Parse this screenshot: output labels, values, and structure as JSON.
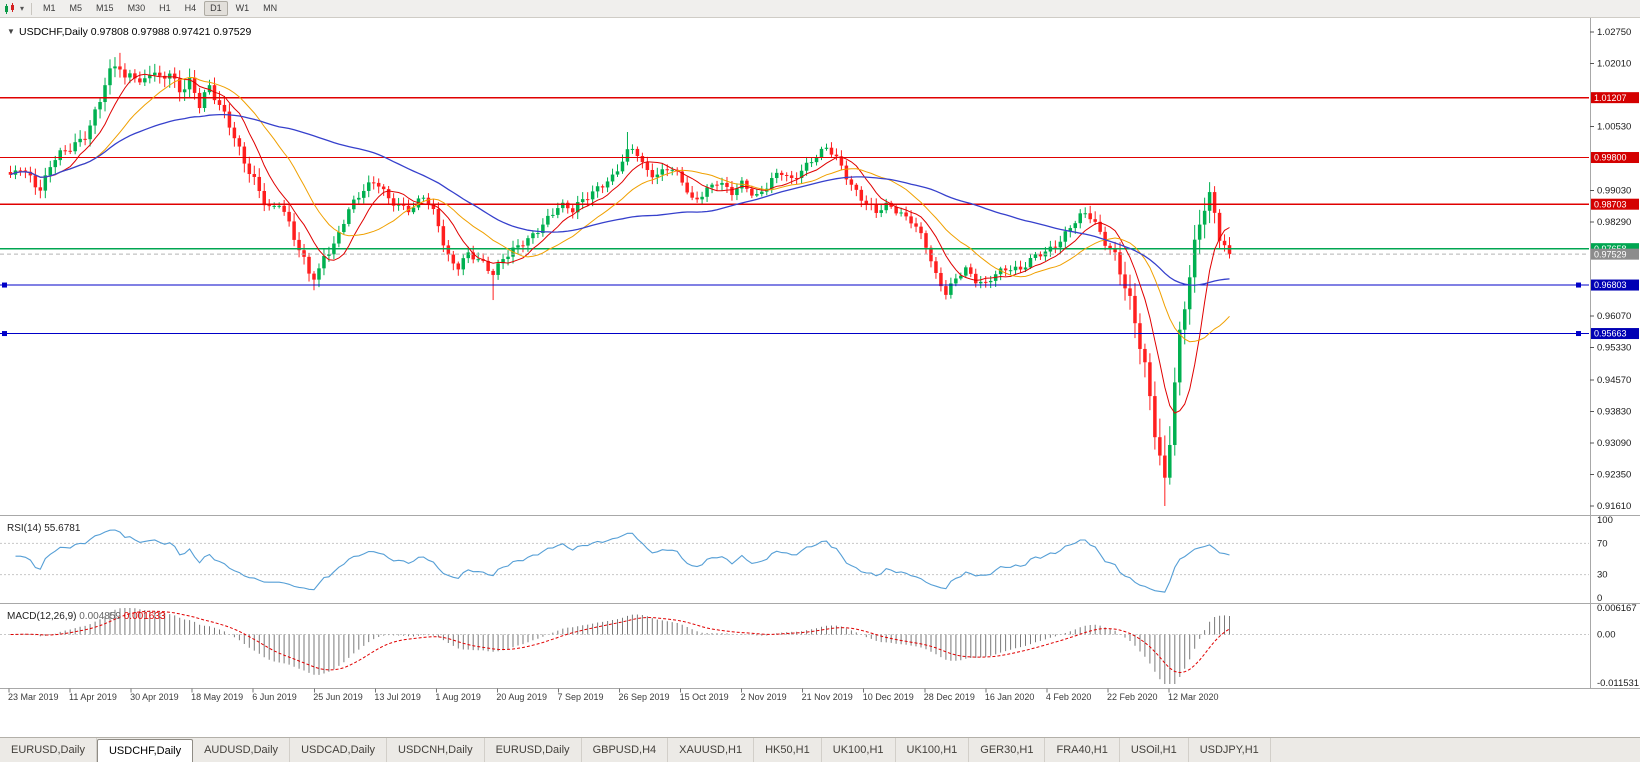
{
  "toolbar": {
    "chart_type_icon": "candlestick-chart-icon",
    "timeframes": [
      "M1",
      "M5",
      "M15",
      "M30",
      "H1",
      "H4",
      "D1",
      "W1",
      "MN"
    ],
    "active_timeframe": "D1"
  },
  "header": {
    "symbol_label": "USDCHF,Daily",
    "dropdown_glyph": "▼",
    "open": "0.97808",
    "high": "0.97988",
    "low": "0.97421",
    "close": "0.97529"
  },
  "chart_data": {
    "type": "candlestick",
    "symbol": "USDCHF",
    "timeframe": "Daily",
    "candle_count": 246,
    "last_close": 0.97529,
    "colors": {
      "up": "#00b050",
      "down": "#ff1f1f",
      "bg": "#ffffff",
      "panel_border": "#a8a8a8",
      "axis_text": "#1a1a1a",
      "date_text": "#3c3c3c",
      "level_dash": "#c8c8c8"
    },
    "price_axis": {
      "max": 1.0275,
      "min": 0.9161,
      "ticks": [
        "1.02750",
        "1.02010",
        "1.00530",
        "0.99030",
        "0.98290",
        "0.96070",
        "0.95330",
        "0.94570",
        "0.93830",
        "0.93090",
        "0.92350",
        "0.91610"
      ]
    },
    "hlines": [
      {
        "price": 1.01207,
        "label": "1.01207",
        "color": "#e00000",
        "badge": "#d40000",
        "kind": "resistance",
        "handles": false
      },
      {
        "price": 0.998,
        "label": "0.99800",
        "color": "#e00000",
        "badge": "#d40000",
        "kind": "resistance",
        "handles": false
      },
      {
        "price": 0.98703,
        "label": "0.98703",
        "color": "#e00000",
        "badge": "#d40000",
        "kind": "resistance",
        "handles": false
      },
      {
        "price": 0.97658,
        "label": "0.97658",
        "color": "#00a651",
        "badge": "#00a651",
        "kind": "support",
        "handles": false
      },
      {
        "price": 0.96803,
        "label": "0.96803",
        "color": "#0000c8",
        "badge": "#0000b4",
        "kind": "support",
        "handles": true
      },
      {
        "price": 0.95663,
        "label": "0.95663",
        "color": "#0000c8",
        "badge": "#0000b4",
        "kind": "support",
        "handles": true
      }
    ],
    "current_price": {
      "price": 0.97529,
      "label": "0.97529",
      "badge": "#8c8c8c",
      "line": "#b4b4b4"
    },
    "moving_averages": [
      {
        "period": 8,
        "color": "#e00000",
        "width": 1
      },
      {
        "period": 18,
        "color": "#f0a000",
        "width": 1
      },
      {
        "period": 55,
        "color": "#3640cc",
        "width": 1.3
      }
    ],
    "close_anchors": [
      [
        0.0,
        0.993
      ],
      [
        0.008,
        0.9958
      ],
      [
        0.016,
        0.9938
      ],
      [
        0.025,
        0.9905
      ],
      [
        0.034,
        0.9968
      ],
      [
        0.044,
        0.999
      ],
      [
        0.054,
        1.0015
      ],
      [
        0.064,
        1.0048
      ],
      [
        0.072,
        1.0105
      ],
      [
        0.08,
        1.0165
      ],
      [
        0.088,
        1.0205
      ],
      [
        0.094,
        1.016
      ],
      [
        0.1,
        1.0195
      ],
      [
        0.107,
        1.015
      ],
      [
        0.115,
        1.0185
      ],
      [
        0.123,
        1.0155
      ],
      [
        0.13,
        1.018
      ],
      [
        0.138,
        1.014
      ],
      [
        0.147,
        1.0165
      ],
      [
        0.155,
        1.0105
      ],
      [
        0.163,
        1.014
      ],
      [
        0.172,
        1.0095
      ],
      [
        0.181,
        1.0055
      ],
      [
        0.19,
        0.9985
      ],
      [
        0.199,
        0.993
      ],
      [
        0.207,
        0.9875
      ],
      [
        0.214,
        0.985
      ],
      [
        0.221,
        0.988
      ],
      [
        0.229,
        0.9825
      ],
      [
        0.237,
        0.9765
      ],
      [
        0.245,
        0.9705
      ],
      [
        0.251,
        0.9688
      ],
      [
        0.257,
        0.9745
      ],
      [
        0.266,
        0.978
      ],
      [
        0.276,
        0.9855
      ],
      [
        0.288,
        0.9895
      ],
      [
        0.3,
        0.9925
      ],
      [
        0.31,
        0.9888
      ],
      [
        0.319,
        0.9868
      ],
      [
        0.329,
        0.9852
      ],
      [
        0.339,
        0.9888
      ],
      [
        0.349,
        0.9845
      ],
      [
        0.358,
        0.9755
      ],
      [
        0.366,
        0.9718
      ],
      [
        0.375,
        0.9748
      ],
      [
        0.385,
        0.9738
      ],
      [
        0.396,
        0.9712
      ],
      [
        0.404,
        0.9745
      ],
      [
        0.414,
        0.9762
      ],
      [
        0.426,
        0.9788
      ],
      [
        0.438,
        0.9832
      ],
      [
        0.45,
        0.9868
      ],
      [
        0.461,
        0.9852
      ],
      [
        0.472,
        0.9888
      ],
      [
        0.484,
        0.9918
      ],
      [
        0.495,
        0.9932
      ],
      [
        0.505,
        0.9985
      ],
      [
        0.512,
        1.0005
      ],
      [
        0.52,
        0.9958
      ],
      [
        0.53,
        0.9938
      ],
      [
        0.54,
        0.9955
      ],
      [
        0.55,
        0.9928
      ],
      [
        0.56,
        0.9878
      ],
      [
        0.57,
        0.9905
      ],
      [
        0.581,
        0.9922
      ],
      [
        0.591,
        0.9892
      ],
      [
        0.601,
        0.9925
      ],
      [
        0.611,
        0.9888
      ],
      [
        0.621,
        0.9912
      ],
      [
        0.631,
        0.9945
      ],
      [
        0.641,
        0.9928
      ],
      [
        0.65,
        0.9958
      ],
      [
        0.66,
        0.998
      ],
      [
        0.67,
        1.0
      ],
      [
        0.679,
        0.9972
      ],
      [
        0.689,
        0.9922
      ],
      [
        0.7,
        0.9878
      ],
      [
        0.71,
        0.9848
      ],
      [
        0.72,
        0.9868
      ],
      [
        0.73,
        0.9852
      ],
      [
        0.74,
        0.9832
      ],
      [
        0.75,
        0.9778
      ],
      [
        0.759,
        0.97
      ],
      [
        0.767,
        0.9662
      ],
      [
        0.775,
        0.9698
      ],
      [
        0.783,
        0.9722
      ],
      [
        0.791,
        0.9688
      ],
      [
        0.8,
        0.9678
      ],
      [
        0.809,
        0.9712
      ],
      [
        0.819,
        0.9725
      ],
      [
        0.829,
        0.9715
      ],
      [
        0.839,
        0.9742
      ],
      [
        0.851,
        0.9762
      ],
      [
        0.861,
        0.9788
      ],
      [
        0.871,
        0.9822
      ],
      [
        0.88,
        0.9845
      ],
      [
        0.887,
        0.9838
      ],
      [
        0.894,
        0.9802
      ],
      [
        0.901,
        0.9778
      ],
      [
        0.907,
        0.9748
      ],
      [
        0.913,
        0.9688
      ],
      [
        0.919,
        0.9625
      ],
      [
        0.925,
        0.9555
      ],
      [
        0.931,
        0.9475
      ],
      [
        0.937,
        0.9385
      ],
      [
        0.942,
        0.9295
      ],
      [
        0.947,
        0.9225
      ],
      [
        0.951,
        0.933
      ],
      [
        0.955,
        0.9445
      ],
      [
        0.96,
        0.9565
      ],
      [
        0.965,
        0.9655
      ],
      [
        0.97,
        0.9742
      ],
      [
        0.975,
        0.9822
      ],
      [
        0.98,
        0.9878
      ],
      [
        0.984,
        0.9898
      ],
      [
        0.988,
        0.9852
      ],
      [
        0.992,
        0.9798
      ],
      [
        0.996,
        0.9768
      ],
      [
        1.0,
        0.97529
      ]
    ],
    "volatility_anchors": [
      [
        0.0,
        0.0016
      ],
      [
        0.07,
        0.0022
      ],
      [
        0.16,
        0.0022
      ],
      [
        0.22,
        0.002
      ],
      [
        0.3,
        0.0016
      ],
      [
        0.4,
        0.0016
      ],
      [
        0.5,
        0.0017
      ],
      [
        0.6,
        0.0014
      ],
      [
        0.7,
        0.0015
      ],
      [
        0.8,
        0.0014
      ],
      [
        0.88,
        0.0015
      ],
      [
        0.91,
        0.0028
      ],
      [
        0.94,
        0.0045
      ],
      [
        0.955,
        0.005
      ],
      [
        0.975,
        0.0035
      ],
      [
        1.0,
        0.0022
      ]
    ],
    "spikes": [
      {
        "t": 0.09,
        "high": 1.0226
      },
      {
        "t": 0.247,
        "low": 0.9668
      },
      {
        "t": 0.396,
        "low": 0.9645
      },
      {
        "t": 0.506,
        "high": 1.004
      },
      {
        "t": 0.767,
        "low": 0.9648
      },
      {
        "t": 0.947,
        "low": 0.9161
      },
      {
        "t": 0.983,
        "high": 0.9906
      }
    ],
    "rsi": {
      "name": "RSI(14)",
      "value": "55.6781",
      "period": 14,
      "color": "#569fd6",
      "axis_labels": [
        "100",
        "70",
        "30",
        "0"
      ],
      "axis_values": [
        100,
        70,
        30,
        0
      ],
      "levels": [
        70,
        30
      ]
    },
    "macd": {
      "name": "MACD(12,26,9)",
      "value_main": "0.004859",
      "value_signal": "0.001633",
      "fast": 12,
      "slow": 26,
      "signal": 9,
      "hist_color": "#7a7a7a",
      "signal_color": "#e00000",
      "scale_max": 0.006167,
      "scale_min": -0.011531,
      "axis_labels": {
        "top": "0.006167",
        "zero": "0.00",
        "bottom": "-0.011531"
      }
    },
    "date_labels": [
      "23 Mar 2019",
      "11 Apr 2019",
      "30 Apr 2019",
      "18 May 2019",
      "6 Jun 2019",
      "25 Jun 2019",
      "13 Jul 2019",
      "1 Aug 2019",
      "20 Aug 2019",
      "7 Sep 2019",
      "26 Sep 2019",
      "15 Oct 2019",
      "2 Nov 2019",
      "21 Nov 2019",
      "10 Dec 2019",
      "28 Dec 2019",
      "16 Jan 2020",
      "4 Feb 2020",
      "22 Feb 2020",
      "12 Mar 2020"
    ]
  },
  "tabs": {
    "items": [
      {
        "label": "EURUSD,Daily",
        "active": false
      },
      {
        "label": "USDCHF,Daily",
        "active": true
      },
      {
        "label": "AUDUSD,Daily",
        "active": false
      },
      {
        "label": "USDCAD,Daily",
        "active": false
      },
      {
        "label": "USDCNH,Daily",
        "active": false
      },
      {
        "label": "EURUSD,Daily",
        "active": false
      },
      {
        "label": "GBPUSD,H4",
        "active": false
      },
      {
        "label": "XAUUSD,H1",
        "active": false
      },
      {
        "label": "HK50,H1",
        "active": false
      },
      {
        "label": "UK100,H1",
        "active": false
      },
      {
        "label": "UK100,H1",
        "active": false
      },
      {
        "label": "GER30,H1",
        "active": false
      },
      {
        "label": "FRA40,H1",
        "active": false
      },
      {
        "label": "USOil,H1",
        "active": false
      },
      {
        "label": "USDJPY,H1",
        "active": false
      }
    ]
  }
}
